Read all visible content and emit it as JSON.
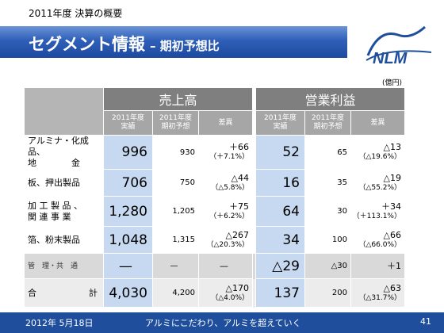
{
  "header": {
    "top_label": "2011年度 決算の概要",
    "title": "セグメント情報",
    "subtitle": "– 期初予想比",
    "logo_text": "NLM"
  },
  "unit": "(億円)",
  "table": {
    "groups": [
      "売上高",
      "営業利益"
    ],
    "subheaders": [
      "2011年度\n実績",
      "2011年度\n期初予想",
      "差異",
      "2011年度\n実績",
      "2011年度\n期初予想",
      "差異"
    ],
    "rows": [
      {
        "label": "アルミナ・化成品、\n地　　　　金",
        "sales_actual": "996",
        "sales_plan": "930",
        "sales_diff": "＋66",
        "sales_diff_pct": "（＋7.1%）",
        "op_actual": "52",
        "op_plan": "65",
        "op_diff": "△13",
        "op_diff_pct": "（△19.6%）"
      },
      {
        "label": "板、押出製品",
        "sales_actual": "706",
        "sales_plan": "750",
        "sales_diff": "△44",
        "sales_diff_pct": "（△5.8%）",
        "op_actual": "16",
        "op_plan": "35",
        "op_diff": "△19",
        "op_diff_pct": "（△55.2%）"
      },
      {
        "label": "加 工 製 品 、\n関 連 事 業",
        "sales_actual": "1,280",
        "sales_plan": "1,205",
        "sales_diff": "＋75",
        "sales_diff_pct": "（＋6.2%）",
        "op_actual": "64",
        "op_plan": "30",
        "op_diff": "＋34",
        "op_diff_pct": "（＋113.1%）"
      },
      {
        "label": "箔、粉末製品",
        "sales_actual": "1,048",
        "sales_plan": "1,315",
        "sales_diff": "△267",
        "sales_diff_pct": "（△20.3%）",
        "op_actual": "34",
        "op_plan": "100",
        "op_diff": "△66",
        "op_diff_pct": "（△66.0%）"
      },
      {
        "label": "管　理・共　通",
        "sales_actual": "—",
        "sales_plan": "—",
        "sales_diff": "—",
        "sales_diff_pct": "",
        "op_actual": "△29",
        "op_plan": "△30",
        "op_diff": "＋1",
        "op_diff_pct": ""
      },
      {
        "label": "合　　　　　　計",
        "sales_actual": "4,030",
        "sales_plan": "4,200",
        "sales_diff": "△170",
        "sales_diff_pct": "（△4.0%）",
        "op_actual": "137",
        "op_plan": "200",
        "op_diff": "△63",
        "op_diff_pct": "（△31.7%）"
      }
    ]
  },
  "footer": {
    "date": "2012年 5月18日",
    "slogan": "アルミにこだわり、アルミを超えていく",
    "page": "41"
  },
  "colors": {
    "banner": "#2e5fb8",
    "footer": "#1f4e9c",
    "actual_cell": "#c6d9f1",
    "group_header": "#7f7f7f"
  }
}
